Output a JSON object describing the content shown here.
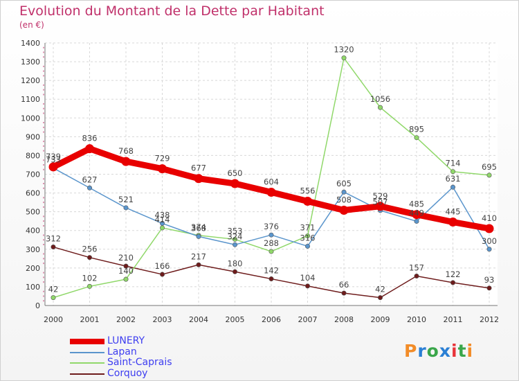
{
  "title": "Evolution du Montant de la Dette par Habitant",
  "unit": "(en €)",
  "logo": {
    "text": "Proxiti",
    "colors": [
      "#f28c28",
      "#2a7fd4",
      "#3aa64a",
      "#2a7fd4",
      "#e8343a",
      "#3aa64a",
      "#f28c28"
    ]
  },
  "chart_data": {
    "type": "line",
    "x": [
      "2000",
      "2001",
      "2002",
      "2003",
      "2004",
      "2005",
      "2006",
      "2007",
      "2008",
      "2009",
      "2010",
      "2011",
      "2012"
    ],
    "ylim": [
      0,
      1400
    ],
    "yticks": [
      0,
      100,
      200,
      300,
      400,
      500,
      600,
      700,
      800,
      900,
      1000,
      1100,
      1200,
      1300,
      1400
    ],
    "grid": true,
    "legend_position": "bottom-left",
    "series": [
      {
        "name": "LUNERY",
        "color": "#e80000",
        "values": [
          739,
          836,
          768,
          729,
          677,
          650,
          604,
          556,
          508,
          529,
          485,
          445,
          410
        ]
      },
      {
        "name": "Lapan",
        "color": "#5a95cc",
        "values": [
          733,
          627,
          521,
          438,
          368,
          324,
          376,
          316,
          605,
          507,
          449,
          631,
          300
        ]
      },
      {
        "name": "Saint-Caprais",
        "color": "#90d86a",
        "values": [
          42,
          102,
          140,
          414,
          374,
          353,
          288,
          371,
          1320,
          1056,
          895,
          714,
          695
        ]
      },
      {
        "name": "Corquoy",
        "color": "#6e1c1c",
        "values": [
          312,
          256,
          210,
          166,
          217,
          180,
          142,
          104,
          66,
          42,
          157,
          122,
          93
        ]
      }
    ]
  }
}
